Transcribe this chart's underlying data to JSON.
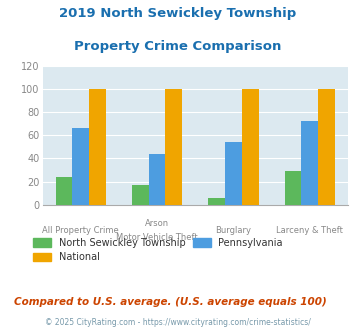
{
  "title_line1": "2019 North Sewickley Township",
  "title_line2": "Property Crime Comparison",
  "title_color": "#1a6faf",
  "cat_labels_row1": [
    "All Property Crime",
    "Arson",
    "Burglary",
    "Larceny & Theft"
  ],
  "cat_labels_row2": [
    "",
    "Motor Vehicle Theft",
    "",
    ""
  ],
  "local_values": [
    24,
    17,
    6,
    29
  ],
  "state_values": [
    66,
    44,
    54,
    72
  ],
  "national_values": [
    100,
    100,
    100,
    100
  ],
  "local_color": "#5cb85c",
  "state_color": "#4d9de0",
  "national_color": "#f0a500",
  "bg_color": "#dce9f0",
  "ylim": [
    0,
    120
  ],
  "yticks": [
    0,
    20,
    40,
    60,
    80,
    100,
    120
  ],
  "legend_labels": [
    "North Sewickley Township",
    "National",
    "Pennsylvania"
  ],
  "footnote1": "Compared to U.S. average. (U.S. average equals 100)",
  "footnote2": "© 2025 CityRating.com - https://www.cityrating.com/crime-statistics/",
  "footnote1_color": "#cc4400",
  "footnote2_color": "#7799aa"
}
